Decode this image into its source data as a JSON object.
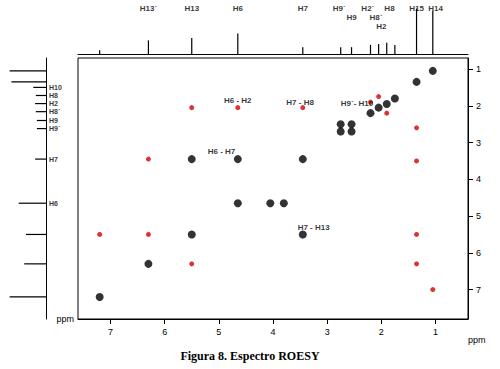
{
  "chart_data": {
    "type": "scatter",
    "title": "Figura 8. Espectro ROESY",
    "x_label": "ppm",
    "y_label": "ppm",
    "xlim": [
      7.6,
      0.4
    ],
    "xticks": [
      7,
      6,
      5,
      4,
      3,
      2,
      1
    ],
    "ylim": [
      0.7,
      7.8
    ],
    "yticks": [
      1,
      2,
      3,
      4,
      5,
      6,
      7
    ],
    "grid": false,
    "marker": "circle",
    "series": [
      {
        "color": "#000000",
        "values": [
          [
            7.2,
            7.2
          ],
          [
            6.3,
            6.3
          ],
          [
            5.5,
            5.5
          ],
          [
            4.65,
            4.65
          ],
          [
            3.45,
            3.45
          ],
          [
            2.75,
            2.7
          ],
          [
            2.55,
            2.5
          ],
          [
            2.75,
            2.5
          ],
          [
            2.55,
            2.7
          ],
          [
            2.2,
            2.2
          ],
          [
            2.05,
            2.05
          ],
          [
            1.9,
            1.95
          ],
          [
            1.75,
            1.8
          ],
          [
            1.35,
            1.35
          ],
          [
            1.05,
            1.05
          ],
          [
            5.5,
            3.45
          ],
          [
            3.45,
            5.5
          ],
          [
            4.65,
            3.45
          ],
          [
            4.05,
            4.65
          ],
          [
            3.8,
            4.65
          ]
        ]
      },
      {
        "color": "#d40000",
        "values": [
          [
            6.3,
            3.45
          ],
          [
            5.5,
            2.05
          ],
          [
            7.2,
            5.5
          ],
          [
            6.3,
            5.5
          ],
          [
            5.5,
            6.3
          ],
          [
            4.65,
            2.05
          ],
          [
            3.45,
            2.05
          ],
          [
            1.35,
            2.6
          ],
          [
            1.35,
            3.5
          ],
          [
            1.35,
            5.5
          ],
          [
            1.35,
            6.3
          ],
          [
            1.05,
            7.0
          ],
          [
            2.2,
            1.9
          ],
          [
            1.9,
            2.2
          ],
          [
            2.05,
            1.75
          ]
        ]
      }
    ],
    "annotations": [
      {
        "text": "H6 - H2",
        "x": 4.65,
        "y": 1.85
      },
      {
        "text": "H7 - H8",
        "x": 3.5,
        "y": 1.9
      },
      {
        "text": "H9´- H10",
        "x": 2.45,
        "y": 1.95
      },
      {
        "text": "H6 - H7",
        "x": 4.95,
        "y": 3.25
      },
      {
        "text": "H7 - H13",
        "x": 3.25,
        "y": 5.3
      }
    ],
    "top_labels": [
      {
        "text": "H13´",
        "ppm": 6.3
      },
      {
        "text": "H13",
        "ppm": 5.5
      },
      {
        "text": "H6",
        "ppm": 4.65
      },
      {
        "text": "H7",
        "ppm": 3.45
      },
      {
        "text": "H9´",
        "ppm": 2.78
      },
      {
        "text": "H9",
        "ppm": 2.55
      },
      {
        "text": "H2´",
        "ppm": 2.25
      },
      {
        "text": "H8´",
        "ppm": 2.1
      },
      {
        "text": "H2",
        "ppm": 2.0
      },
      {
        "text": "H8",
        "ppm": 1.85
      },
      {
        "text": "H15",
        "ppm": 1.35
      },
      {
        "text": "H14",
        "ppm": 1.0
      }
    ],
    "left_labels": [
      {
        "text": "H10",
        "ppm": 1.5
      },
      {
        "text": "H8",
        "ppm": 1.72
      },
      {
        "text": "H2",
        "ppm": 1.94
      },
      {
        "text": "H8´",
        "ppm": 2.16
      },
      {
        "text": "H9",
        "ppm": 2.4
      },
      {
        "text": "H9´",
        "ppm": 2.62
      },
      {
        "text": "H7",
        "ppm": 3.45
      },
      {
        "text": "H6",
        "ppm": 4.65
      }
    ],
    "projection_lim": [
      0,
      110
    ],
    "top_projection": [
      [
        7.2,
        8
      ],
      [
        6.3,
        30
      ],
      [
        5.5,
        35
      ],
      [
        4.65,
        45
      ],
      [
        3.45,
        15
      ],
      [
        2.75,
        15
      ],
      [
        2.55,
        15
      ],
      [
        2.2,
        20
      ],
      [
        2.05,
        22
      ],
      [
        1.9,
        25
      ],
      [
        1.75,
        20
      ],
      [
        1.35,
        100
      ],
      [
        1.05,
        95
      ]
    ],
    "left_projection": [
      [
        7.2,
        100
      ],
      [
        6.3,
        60
      ],
      [
        5.5,
        55
      ],
      [
        4.65,
        75
      ],
      [
        3.45,
        30
      ],
      [
        2.62,
        25
      ],
      [
        2.4,
        25
      ],
      [
        2.16,
        28
      ],
      [
        1.94,
        30
      ],
      [
        1.72,
        28
      ],
      [
        1.5,
        35
      ],
      [
        1.35,
        95
      ],
      [
        1.05,
        100
      ]
    ]
  }
}
